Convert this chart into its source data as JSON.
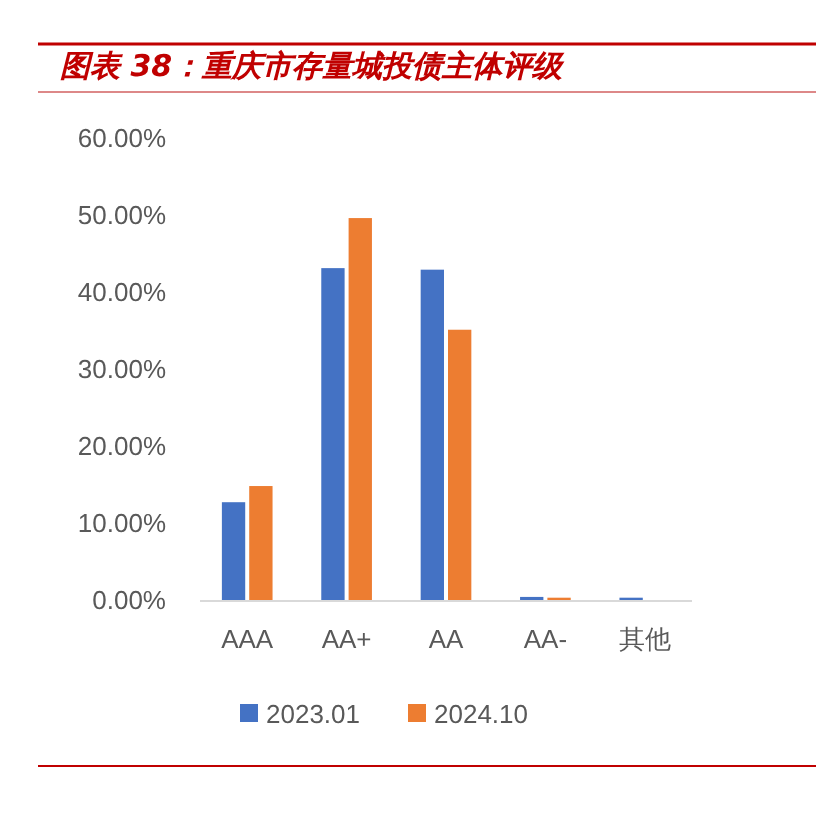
{
  "chart_data": {
    "type": "bar",
    "title": "图表 38：重庆市存量城投债主体评级",
    "categories": [
      "AAA",
      "AA+",
      "AA",
      "AA-",
      "其他"
    ],
    "series": [
      {
        "name": "2023.01",
        "color": "#4472c4",
        "values": [
          12.7,
          43.1,
          42.9,
          0.4,
          0.3
        ]
      },
      {
        "name": "2024.10",
        "color": "#ed7d31",
        "values": [
          14.8,
          49.6,
          35.1,
          0.3,
          0
        ]
      }
    ],
    "ylim": [
      0,
      60
    ],
    "yticks": [
      {
        "value": 0,
        "label": "0.00%"
      },
      {
        "value": 10,
        "label": "10.00%"
      },
      {
        "value": 20,
        "label": "20.00%"
      },
      {
        "value": 30,
        "label": "30.00%"
      },
      {
        "value": 40,
        "label": "40.00%"
      },
      {
        "value": 50,
        "label": "50.00%"
      },
      {
        "value": 60,
        "label": "60.00%"
      }
    ],
    "grid": false,
    "legend": "bottom"
  }
}
